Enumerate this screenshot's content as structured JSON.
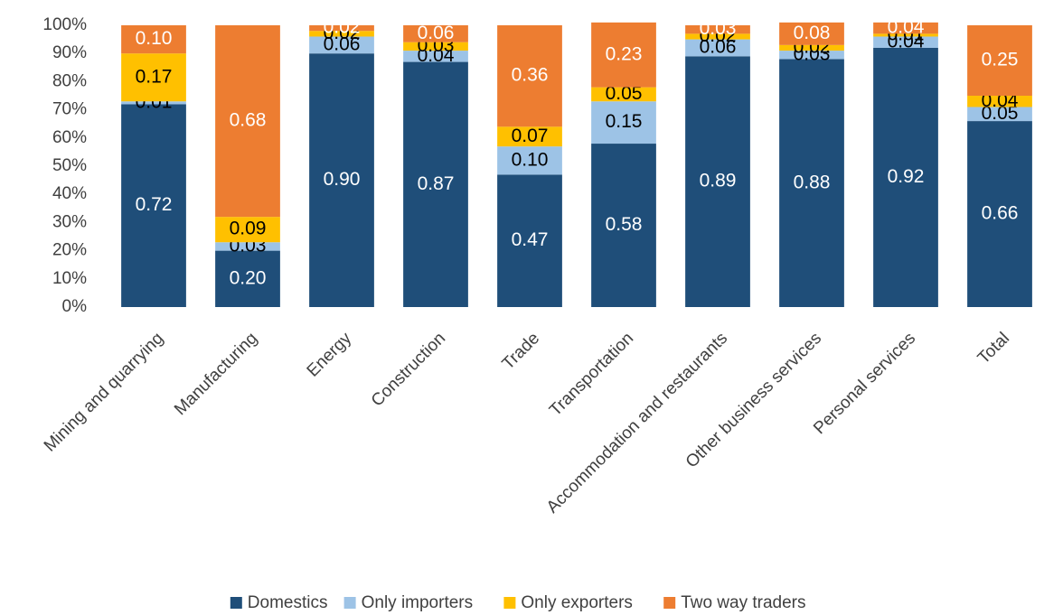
{
  "chart_data": {
    "type": "stacked_bar",
    "categories": [
      "Mining and quarrying",
      "Manufacturing",
      "Energy",
      "Construction",
      "Trade",
      "Transportation",
      "Accommodation and restaurants",
      "Other business services",
      "Personal services",
      "Total"
    ],
    "series": [
      {
        "name": "Domestics",
        "color": "#1f4e79",
        "label_color": "#ffffff",
        "values": [
          72,
          20,
          90,
          87,
          47,
          58,
          89,
          88,
          92,
          66
        ],
        "value_labels": [
          "0.72",
          "0.20",
          "0.90",
          "0.87",
          "0.47",
          "0.58",
          "0.89",
          "0.88",
          "0.92",
          "0.66"
        ]
      },
      {
        "name": "Only importers",
        "color": "#9dc3e6",
        "label_color": "#000000",
        "values": [
          1,
          3,
          6,
          4,
          10,
          15,
          6,
          3,
          4,
          5
        ],
        "value_labels": [
          "0.01",
          "0.03",
          "0.06",
          "0.04",
          "0.10",
          "0.15",
          "0.06",
          "0.03",
          "0.04",
          "0.05"
        ]
      },
      {
        "name": "Only exporters",
        "color": "#ffc000",
        "label_color": "#000000",
        "values": [
          17,
          9,
          2,
          3,
          7,
          5,
          2,
          2,
          1,
          4
        ],
        "value_labels": [
          "0.17",
          "0.09",
          "0.02",
          "0.03",
          "0.07",
          "0.05",
          "0.02",
          "0.02",
          "0.01",
          "0.04"
        ]
      },
      {
        "name": "Two way traders",
        "color": "#ed7d31",
        "label_color": "#ffffff",
        "values": [
          10,
          68,
          2,
          6,
          36,
          23,
          3,
          8,
          4,
          25
        ],
        "value_labels": [
          "0.10",
          "0.68",
          "0.02",
          "0.06",
          "0.36",
          "0.23",
          "0.03",
          "0.08",
          "0.04",
          "0.25"
        ]
      }
    ],
    "ylim": [
      0,
      100
    ],
    "yticks": [
      {
        "value": 0,
        "label": "0%"
      },
      {
        "value": 10,
        "label": "10%"
      },
      {
        "value": 20,
        "label": "20%"
      },
      {
        "value": 30,
        "label": "30%"
      },
      {
        "value": 40,
        "label": "40%"
      },
      {
        "value": 50,
        "label": "50%"
      },
      {
        "value": 60,
        "label": "60%"
      },
      {
        "value": 70,
        "label": "70%"
      },
      {
        "value": 80,
        "label": "80%"
      },
      {
        "value": 90,
        "label": "90%"
      },
      {
        "value": 100,
        "label": "100%"
      }
    ],
    "legend": "bottom"
  }
}
